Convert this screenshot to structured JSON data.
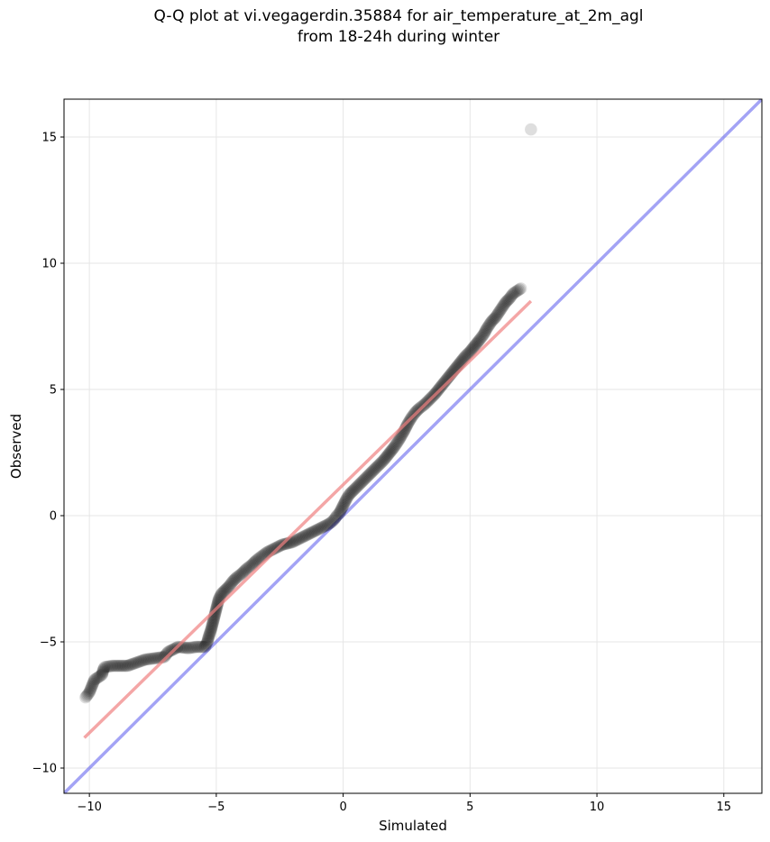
{
  "chart_data": {
    "type": "scatter",
    "title": [
      "Q-Q plot at vi.vegagerdin.35884 for air_temperature_at_2m_agl",
      "from 18-24h during winter"
    ],
    "xlabel": "Simulated",
    "ylabel": "Observed",
    "xlim": [
      -11,
      16.5
    ],
    "ylim": [
      -11,
      16.5
    ],
    "xticks": [
      -10,
      -5,
      0,
      5,
      10,
      15
    ],
    "yticks": [
      -10,
      -5,
      0,
      5,
      10,
      15
    ],
    "grid": true,
    "colors": {
      "points": "#000000",
      "fit_line": "#f08080",
      "identity_line": "#6666ee"
    },
    "fit_line": {
      "x": [
        -10.2,
        7.4
      ],
      "y": [
        -8.8,
        8.5
      ]
    },
    "identity_line": {
      "x": [
        -11,
        16.5
      ],
      "y": [
        -11,
        16.5
      ]
    },
    "quantiles_x": [
      -10.15,
      -10.0,
      -9.8,
      -9.5,
      -9.45,
      -9.4,
      -9.1,
      -8.5,
      -7.8,
      -7.05,
      -6.9,
      -6.7,
      -6.5,
      -6.1,
      -5.8,
      -5.45,
      -5.35,
      -5.3,
      -5.2,
      -5.15,
      -5.1,
      -5.05,
      -5.0,
      -4.95,
      -4.9,
      -4.8,
      -4.65,
      -4.5,
      -4.35,
      -4.2,
      -4.0,
      -3.8,
      -3.6,
      -3.4,
      -3.2,
      -3.0,
      -2.8,
      -2.6,
      -2.4,
      -2.2,
      -2.0,
      -1.8,
      -1.6,
      -1.4,
      -1.2,
      -1.0,
      -0.8,
      -0.6,
      -0.45,
      -0.35,
      -0.25,
      -0.15,
      -0.05,
      0.05,
      0.15,
      0.25,
      0.4,
      0.6,
      0.8,
      1.0,
      1.2,
      1.4,
      1.6,
      1.8,
      2.0,
      2.2,
      2.4,
      2.55,
      2.7,
      2.85,
      3.0,
      3.2,
      3.4,
      3.6,
      3.8,
      4.0,
      4.2,
      4.4,
      4.6,
      4.8,
      5.0,
      5.2,
      5.4,
      5.55,
      5.65,
      5.75,
      5.85,
      6.0,
      6.1,
      6.2,
      6.3,
      6.4,
      6.55,
      6.7,
      7.0,
      7.4
    ],
    "quantiles_y": [
      -7.2,
      -7.0,
      -6.5,
      -6.3,
      -6.1,
      -6.0,
      -5.95,
      -5.95,
      -5.7,
      -5.6,
      -5.4,
      -5.3,
      -5.2,
      -5.25,
      -5.2,
      -5.2,
      -5.0,
      -4.8,
      -4.5,
      -4.3,
      -4.1,
      -3.9,
      -3.7,
      -3.5,
      -3.3,
      -3.1,
      -2.95,
      -2.8,
      -2.6,
      -2.45,
      -2.3,
      -2.1,
      -1.95,
      -1.75,
      -1.6,
      -1.45,
      -1.35,
      -1.25,
      -1.15,
      -1.1,
      -1.05,
      -0.95,
      -0.85,
      -0.75,
      -0.65,
      -0.55,
      -0.45,
      -0.35,
      -0.25,
      -0.15,
      0.0,
      0.1,
      0.3,
      0.5,
      0.7,
      0.85,
      1.0,
      1.2,
      1.4,
      1.6,
      1.8,
      2.0,
      2.2,
      2.45,
      2.7,
      3.0,
      3.35,
      3.65,
      3.9,
      4.1,
      4.25,
      4.4,
      4.6,
      4.8,
      5.05,
      5.3,
      5.55,
      5.8,
      6.05,
      6.3,
      6.5,
      6.75,
      7.0,
      7.2,
      7.4,
      7.55,
      7.7,
      7.85,
      8.0,
      8.15,
      8.3,
      8.45,
      8.6,
      8.8,
      9.0,
      15.3
    ]
  }
}
